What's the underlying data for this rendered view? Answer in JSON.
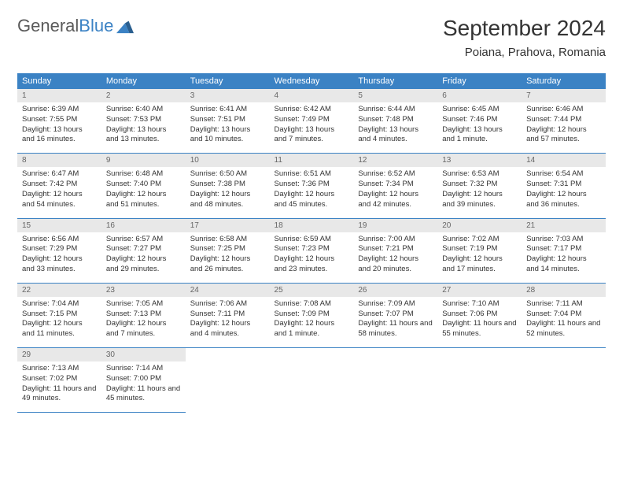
{
  "logo": {
    "word1": "General",
    "word2": "Blue"
  },
  "title": "September 2024",
  "location": "Poiana, Prahova, Romania",
  "colors": {
    "header_bg": "#3b82c4",
    "header_fg": "#ffffff",
    "daynum_bg": "#e8e8e8",
    "daynum_fg": "#666666",
    "cell_border": "#3b82c4",
    "text": "#333333",
    "page_bg": "#ffffff"
  },
  "weekdays": [
    "Sunday",
    "Monday",
    "Tuesday",
    "Wednesday",
    "Thursday",
    "Friday",
    "Saturday"
  ],
  "days": [
    {
      "n": "1",
      "sr": "6:39 AM",
      "ss": "7:55 PM",
      "dl": "13 hours and 16 minutes."
    },
    {
      "n": "2",
      "sr": "6:40 AM",
      "ss": "7:53 PM",
      "dl": "13 hours and 13 minutes."
    },
    {
      "n": "3",
      "sr": "6:41 AM",
      "ss": "7:51 PM",
      "dl": "13 hours and 10 minutes."
    },
    {
      "n": "4",
      "sr": "6:42 AM",
      "ss": "7:49 PM",
      "dl": "13 hours and 7 minutes."
    },
    {
      "n": "5",
      "sr": "6:44 AM",
      "ss": "7:48 PM",
      "dl": "13 hours and 4 minutes."
    },
    {
      "n": "6",
      "sr": "6:45 AM",
      "ss": "7:46 PM",
      "dl": "13 hours and 1 minute."
    },
    {
      "n": "7",
      "sr": "6:46 AM",
      "ss": "7:44 PM",
      "dl": "12 hours and 57 minutes."
    },
    {
      "n": "8",
      "sr": "6:47 AM",
      "ss": "7:42 PM",
      "dl": "12 hours and 54 minutes."
    },
    {
      "n": "9",
      "sr": "6:48 AM",
      "ss": "7:40 PM",
      "dl": "12 hours and 51 minutes."
    },
    {
      "n": "10",
      "sr": "6:50 AM",
      "ss": "7:38 PM",
      "dl": "12 hours and 48 minutes."
    },
    {
      "n": "11",
      "sr": "6:51 AM",
      "ss": "7:36 PM",
      "dl": "12 hours and 45 minutes."
    },
    {
      "n": "12",
      "sr": "6:52 AM",
      "ss": "7:34 PM",
      "dl": "12 hours and 42 minutes."
    },
    {
      "n": "13",
      "sr": "6:53 AM",
      "ss": "7:32 PM",
      "dl": "12 hours and 39 minutes."
    },
    {
      "n": "14",
      "sr": "6:54 AM",
      "ss": "7:31 PM",
      "dl": "12 hours and 36 minutes."
    },
    {
      "n": "15",
      "sr": "6:56 AM",
      "ss": "7:29 PM",
      "dl": "12 hours and 33 minutes."
    },
    {
      "n": "16",
      "sr": "6:57 AM",
      "ss": "7:27 PM",
      "dl": "12 hours and 29 minutes."
    },
    {
      "n": "17",
      "sr": "6:58 AM",
      "ss": "7:25 PM",
      "dl": "12 hours and 26 minutes."
    },
    {
      "n": "18",
      "sr": "6:59 AM",
      "ss": "7:23 PM",
      "dl": "12 hours and 23 minutes."
    },
    {
      "n": "19",
      "sr": "7:00 AM",
      "ss": "7:21 PM",
      "dl": "12 hours and 20 minutes."
    },
    {
      "n": "20",
      "sr": "7:02 AM",
      "ss": "7:19 PM",
      "dl": "12 hours and 17 minutes."
    },
    {
      "n": "21",
      "sr": "7:03 AM",
      "ss": "7:17 PM",
      "dl": "12 hours and 14 minutes."
    },
    {
      "n": "22",
      "sr": "7:04 AM",
      "ss": "7:15 PM",
      "dl": "12 hours and 11 minutes."
    },
    {
      "n": "23",
      "sr": "7:05 AM",
      "ss": "7:13 PM",
      "dl": "12 hours and 7 minutes."
    },
    {
      "n": "24",
      "sr": "7:06 AM",
      "ss": "7:11 PM",
      "dl": "12 hours and 4 minutes."
    },
    {
      "n": "25",
      "sr": "7:08 AM",
      "ss": "7:09 PM",
      "dl": "12 hours and 1 minute."
    },
    {
      "n": "26",
      "sr": "7:09 AM",
      "ss": "7:07 PM",
      "dl": "11 hours and 58 minutes."
    },
    {
      "n": "27",
      "sr": "7:10 AM",
      "ss": "7:06 PM",
      "dl": "11 hours and 55 minutes."
    },
    {
      "n": "28",
      "sr": "7:11 AM",
      "ss": "7:04 PM",
      "dl": "11 hours and 52 minutes."
    },
    {
      "n": "29",
      "sr": "7:13 AM",
      "ss": "7:02 PM",
      "dl": "11 hours and 49 minutes."
    },
    {
      "n": "30",
      "sr": "7:14 AM",
      "ss": "7:00 PM",
      "dl": "11 hours and 45 minutes."
    }
  ],
  "labels": {
    "sunrise": "Sunrise:",
    "sunset": "Sunset:",
    "daylight": "Daylight:"
  },
  "layout": {
    "start_weekday": 0,
    "columns": 7,
    "rows": 5
  }
}
